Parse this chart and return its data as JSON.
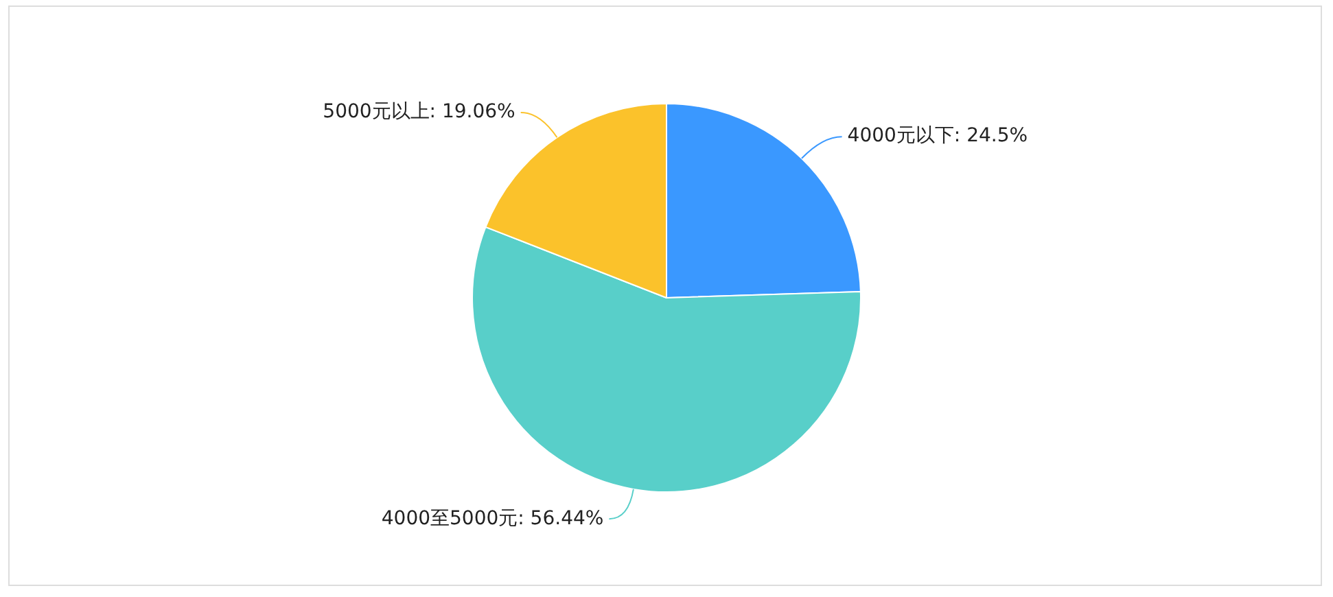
{
  "chart_data": {
    "type": "pie",
    "categories": [
      "4000元以下",
      "4000至5000元",
      "5000元以上"
    ],
    "values": [
      24.5,
      56.44,
      19.06
    ],
    "value_labels": [
      ": 24.5%",
      ": 56.44%",
      ": 19.06%"
    ],
    "colors": [
      "#3a98ff",
      "#58cfc9",
      "#fbc22b"
    ],
    "legend": false
  }
}
